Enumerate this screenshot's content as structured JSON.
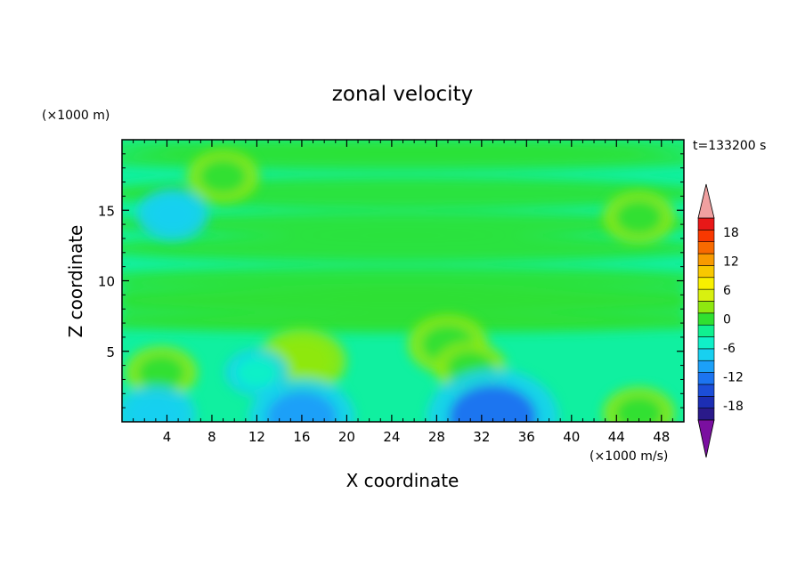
{
  "chart_data": {
    "type": "heatmap",
    "title": "zonal velocity",
    "xlabel": "X coordinate",
    "ylabel": "Z coordinate",
    "x_units": "(×1000 m/s)",
    "y_units": "(×1000 m)",
    "time_label": "t=133200 s",
    "xlim": [
      0,
      50
    ],
    "ylim": [
      0,
      20
    ],
    "x_ticks": [
      4,
      8,
      12,
      16,
      20,
      24,
      28,
      32,
      36,
      40,
      44,
      48
    ],
    "y_ticks": [
      5,
      10,
      15
    ],
    "colorbar": {
      "range": [
        -21,
        21
      ],
      "step": 3,
      "tick_values": [
        18,
        12,
        6,
        0,
        -6,
        -12,
        -18
      ],
      "extend": "both",
      "colors": [
        "#7a0fa0",
        "#2a1a8a",
        "#1c2eb4",
        "#1c4ed8",
        "#1c74f0",
        "#1ca0f8",
        "#18d0f0",
        "#10f0c8",
        "#10f090",
        "#30e030",
        "#8ee810",
        "#d8f010",
        "#f8f000",
        "#f8c800",
        "#f89a00",
        "#f86a00",
        "#f83800",
        "#e81818",
        "#f0a0a0"
      ]
    },
    "field_summary": [
      {
        "x": 16,
        "z": 4.3,
        "value": 6
      },
      {
        "x": 3.5,
        "z": 3.5,
        "value": 4
      },
      {
        "x": 29,
        "z": 5.5,
        "value": 5
      },
      {
        "x": 31,
        "z": 3.8,
        "value": 4
      },
      {
        "x": 16,
        "z": 0.3,
        "value": -8
      },
      {
        "x": 33,
        "z": 0.3,
        "value": -11
      },
      {
        "x": 3,
        "z": 0.5,
        "value": -5
      },
      {
        "x": 9,
        "z": 17.4,
        "value": 4
      },
      {
        "x": 46,
        "z": 14.5,
        "value": 4
      },
      {
        "x": 4.5,
        "z": 14.7,
        "value": -4
      },
      {
        "x": 12,
        "z": 3.5,
        "value": -3
      },
      {
        "x": 46,
        "z": 0.6,
        "value": 4
      }
    ]
  }
}
